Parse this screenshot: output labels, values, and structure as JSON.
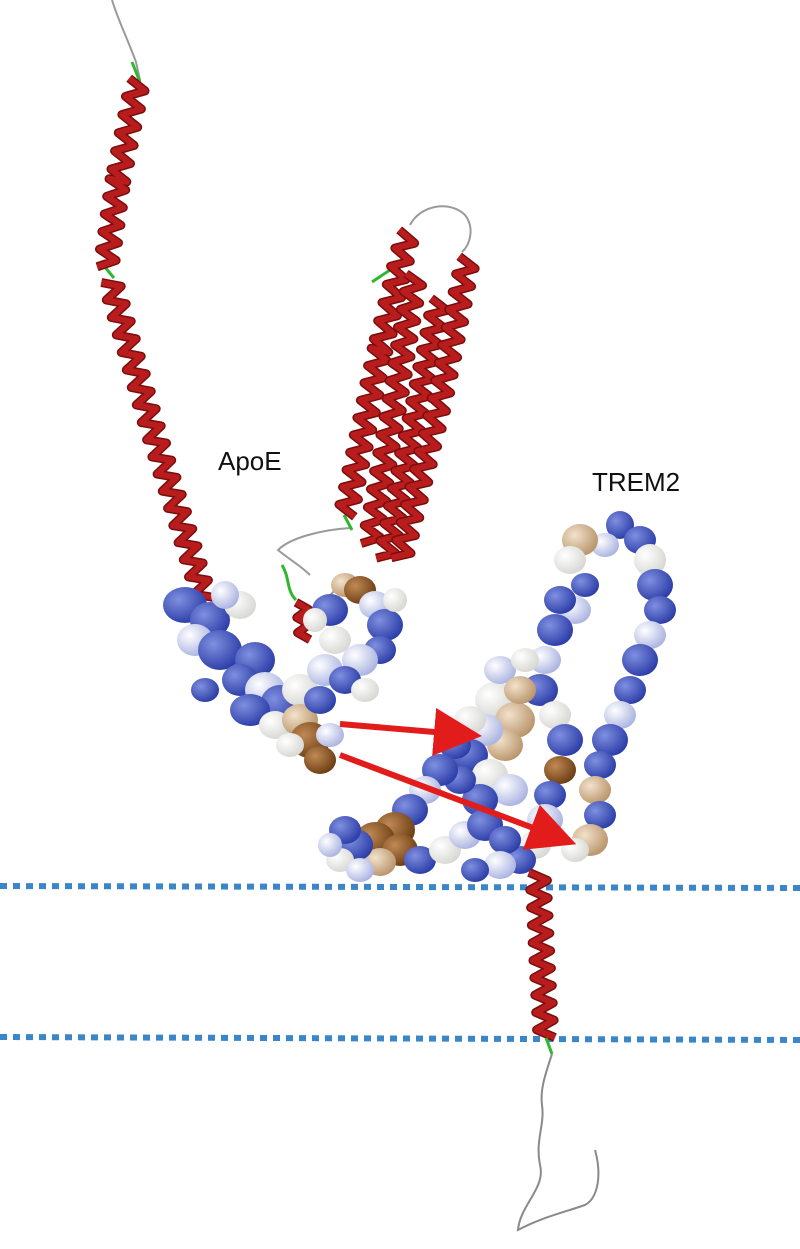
{
  "labels": {
    "apoe": "ApoE",
    "trem2": "TREM2"
  },
  "colors": {
    "helix": "#b81c1c",
    "helix_dark": "#7a0d0d",
    "loop": "#9a9a9a",
    "green_segment": "#2db82d",
    "yellow_segment": "#d8c840",
    "basic_blue": "#3b4fb8",
    "light_blue": "#a7b1e3",
    "neutral_white": "#f1f1ee",
    "hydrophobic_brown": "#8a5522",
    "tan": "#c9a77e",
    "arrow": "#e21b1b",
    "membrane_line": "#3a86c8"
  },
  "icons": {
    "arrow_head": "triangle-arrowhead",
    "membrane": "dotted-line"
  }
}
